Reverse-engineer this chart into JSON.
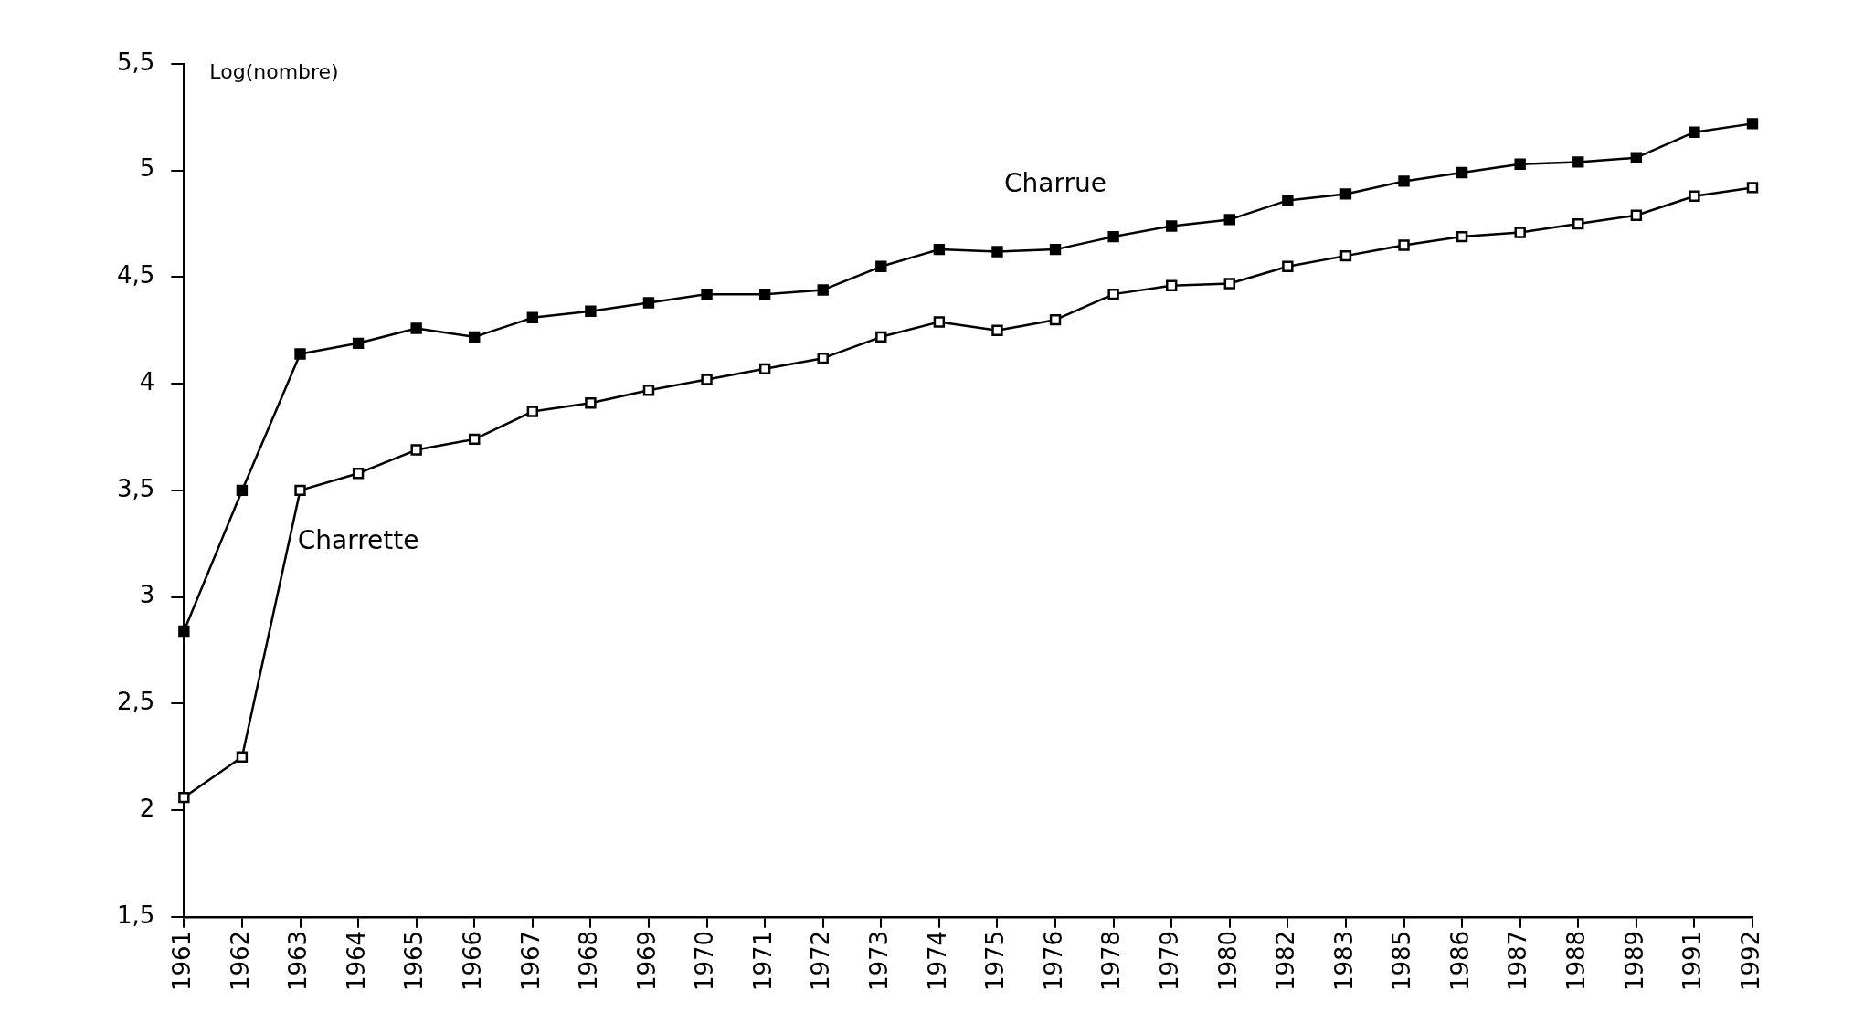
{
  "chart_data": {
    "type": "line",
    "ylabel": "Log(nombre)",
    "categories": [
      "1961",
      "1962",
      "1963",
      "1964",
      "1965",
      "1966",
      "1967",
      "1968",
      "1969",
      "1970",
      "1971",
      "1972",
      "1973",
      "1974",
      "1975",
      "1976",
      "1978",
      "1979",
      "1980",
      "1982",
      "1983",
      "1985",
      "1986",
      "1987",
      "1988",
      "1989",
      "1991",
      "1992"
    ],
    "series": [
      {
        "name": "Charrue",
        "color": "#000000",
        "values": [
          2.84,
          3.5,
          4.14,
          4.19,
          4.26,
          4.22,
          4.31,
          4.34,
          4.38,
          4.42,
          4.42,
          4.44,
          4.55,
          4.63,
          4.62,
          4.63,
          4.69,
          4.74,
          4.77,
          4.86,
          4.89,
          4.95,
          4.99,
          5.03,
          5.04,
          5.06,
          5.18,
          5.22
        ]
      },
      {
        "name": "Charrette",
        "color": "#000000",
        "values": [
          2.06,
          2.25,
          3.5,
          3.58,
          3.69,
          3.74,
          3.87,
          3.91,
          3.97,
          4.02,
          4.07,
          4.12,
          4.22,
          4.29,
          4.25,
          4.3,
          4.42,
          4.46,
          4.47,
          4.55,
          4.6,
          4.65,
          4.69,
          4.71,
          4.75,
          4.79,
          4.88,
          4.92
        ]
      }
    ],
    "ylim": [
      1.5,
      5.5
    ],
    "yticks": [
      {
        "value": 1.5,
        "label": "1,5"
      },
      2,
      {
        "value": 2.5,
        "label": "2,5"
      },
      3,
      {
        "value": 3.5,
        "label": "3,5"
      },
      4,
      {
        "value": 4.5,
        "label": "4,5"
      },
      5,
      {
        "value": 5.5,
        "label": "5,5"
      }
    ],
    "grid": false,
    "legend": false,
    "marker": "square",
    "line_style": "solid"
  }
}
